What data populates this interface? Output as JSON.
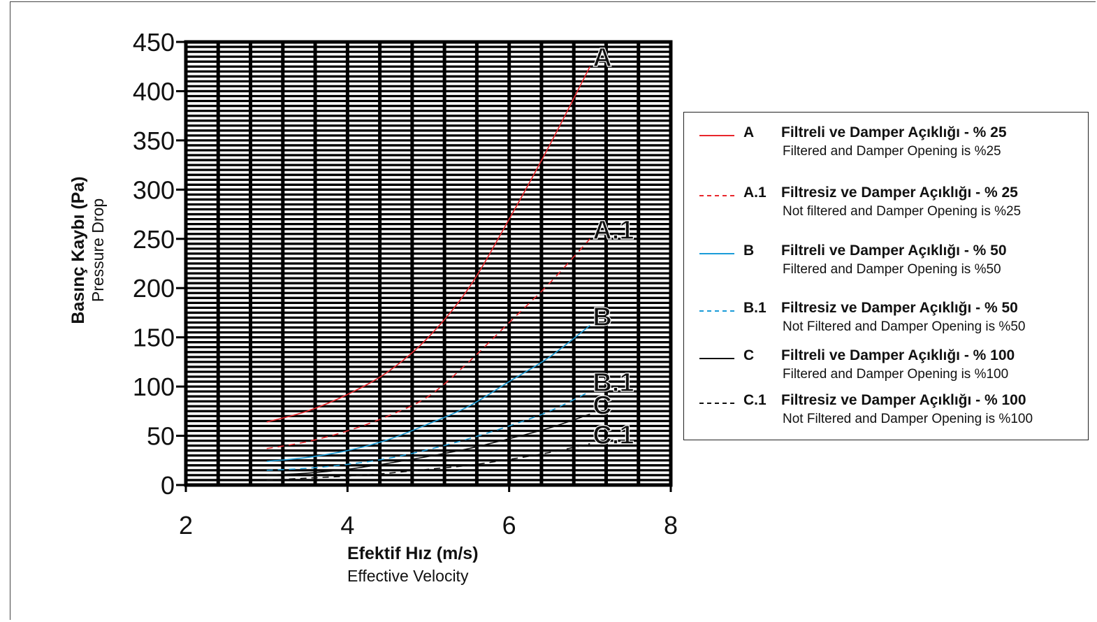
{
  "chart_data": {
    "type": "line",
    "xlabel": "Efektif Hız (m/s)",
    "xlabel_sub": "Effective Velocity",
    "ylabel": "Basınç Kaybı (Pa)",
    "ylabel_sub": "Pressure Drop",
    "xlim": [
      2,
      8
    ],
    "ylim": [
      0,
      450
    ],
    "x_ticks": [
      2,
      4,
      6,
      8
    ],
    "y_ticks": [
      0,
      50,
      100,
      150,
      200,
      250,
      300,
      350,
      400,
      450
    ],
    "grid": true,
    "legend_position": "right",
    "series": [
      {
        "code": "A",
        "name": "Filtreli ve Damper Açıklığı - % 25",
        "name_en": "Filtered and Damper Opening is %25",
        "color": "#e8262c",
        "style": "solid",
        "x": [
          3,
          3.5,
          4,
          4.5,
          5,
          5.5,
          6,
          6.5,
          7
        ],
        "y": [
          64,
          75,
          92,
          115,
          150,
          200,
          270,
          345,
          425
        ]
      },
      {
        "code": "A.1",
        "name": "Filtresiz ve Damper Açıklığı - % 25",
        "name_en": "Not filtered and Damper Opening is %25",
        "color": "#e8262c",
        "style": "dashed",
        "x": [
          3,
          3.5,
          4,
          4.5,
          5,
          5.5,
          6,
          6.5,
          7
        ],
        "y": [
          37,
          44,
          55,
          70,
          90,
          125,
          165,
          205,
          250
        ]
      },
      {
        "code": "B",
        "name": "Filtreli ve Damper Açıklığı - % 50",
        "name_en": "Filtered and Damper Opening is %50",
        "color": "#1a9cd8",
        "style": "solid",
        "x": [
          3,
          3.5,
          4,
          4.5,
          5,
          5.5,
          6,
          6.5,
          7
        ],
        "y": [
          24,
          28,
          35,
          46,
          62,
          80,
          105,
          130,
          162
        ]
      },
      {
        "code": "B.1",
        "name": "Filtresiz ve Damper Açıklığı - % 50",
        "name_en": "Not Filtered and Damper Opening is %50",
        "color": "#1a9cd8",
        "style": "dashed",
        "x": [
          3,
          3.5,
          4,
          4.5,
          5,
          5.5,
          6,
          6.5,
          7
        ],
        "y": [
          15,
          17,
          21,
          27,
          36,
          47,
          60,
          75,
          95
        ]
      },
      {
        "code": "C",
        "name": "Filtreli ve Damper Açıklığı - % 100",
        "name_en": "Filtered and Damper Opening is %100",
        "color": "#111111",
        "style": "solid",
        "x": [
          3,
          3.5,
          4,
          4.5,
          5,
          5.5,
          6,
          6.5,
          7
        ],
        "y": [
          10,
          12,
          16,
          22,
          29,
          37,
          47,
          58,
          72
        ]
      },
      {
        "code": "C.1",
        "name": "Filtresiz ve Damper Açıklığı - % 100",
        "name_en": "Not Filtered and Damper Opening is %100",
        "color": "#111111",
        "style": "dashed",
        "x": [
          3,
          3.5,
          4,
          4.5,
          5,
          5.5,
          6,
          6.5,
          7
        ],
        "y": [
          5,
          7,
          9,
          12,
          16,
          20,
          26,
          33,
          42
        ]
      }
    ]
  }
}
